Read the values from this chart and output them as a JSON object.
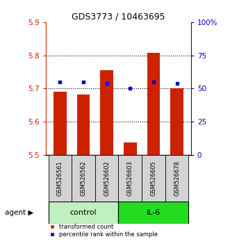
{
  "title": "GDS3773 / 10463695",
  "samples": [
    "GSM526561",
    "GSM526562",
    "GSM526602",
    "GSM526603",
    "GSM526605",
    "GSM526678"
  ],
  "red_values": [
    5.69,
    5.682,
    5.755,
    5.538,
    5.808,
    5.7
  ],
  "blue_percentiles": [
    55,
    55,
    54,
    50,
    55,
    54
  ],
  "ylim_left": [
    5.5,
    5.9
  ],
  "ylim_right": [
    0,
    100
  ],
  "yticks_left": [
    5.5,
    5.6,
    5.7,
    5.8,
    5.9
  ],
  "yticks_right": [
    0,
    25,
    50,
    75,
    100
  ],
  "ytick_labels_right": [
    "0",
    "25",
    "50",
    "75",
    "100%"
  ],
  "bar_color": "#cc2200",
  "dot_color": "#0000cc",
  "bar_width": 0.55,
  "sample_box_color": "#d3d3d3",
  "left_axis_color": "#cc2200",
  "right_axis_color": "#0000cc",
  "control_color": "#c0f0c0",
  "il6_color": "#22dd22",
  "legend_labels": [
    "transformed count",
    "percentile rank within the sample"
  ]
}
